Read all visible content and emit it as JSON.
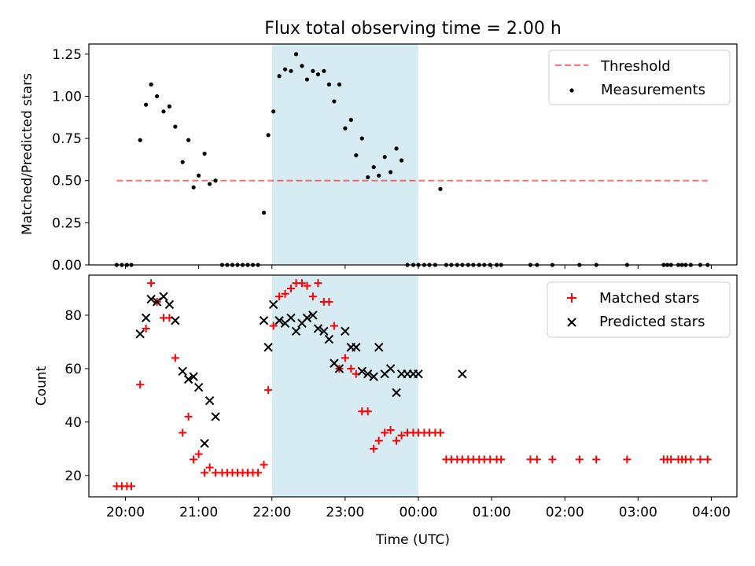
{
  "figure": {
    "title": "Flux total observing time = 2.00 h",
    "shaded_region_color": "#add8e6",
    "shaded_region": [
      "22:00",
      "00:00"
    ]
  },
  "chart_data": [
    {
      "type": "scatter",
      "ylabel": "Matched/Predicted stars",
      "xlabel": "",
      "x_unit": "hours since 20:00 UTC",
      "xlim": [
        -0.5,
        8.35
      ],
      "ylim": [
        0.0,
        1.31
      ],
      "yticks": [
        0.0,
        0.25,
        0.5,
        0.75,
        1.0,
        1.25
      ],
      "ytick_labels": [
        "0.00",
        "0.25",
        "0.50",
        "0.75",
        "1.00",
        "1.25"
      ],
      "grid": false,
      "legend_position": "top-right",
      "series": [
        {
          "name": "Threshold",
          "kind": "hline",
          "color": "#ff0000",
          "y": 0.5,
          "x_range": [
            -0.12,
            7.95
          ]
        },
        {
          "name": "Measurements",
          "kind": "points",
          "color": "#000000",
          "x": [
            -0.12,
            -0.05,
            0.02,
            0.08,
            0.2,
            0.28,
            0.35,
            0.43,
            0.52,
            0.6,
            0.68,
            0.78,
            0.86,
            0.93,
            1.0,
            1.08,
            1.15,
            1.23,
            1.32,
            1.39,
            1.46,
            1.53,
            1.6,
            1.67,
            1.74,
            1.81,
            1.89,
            1.95,
            2.02,
            2.1,
            2.18,
            2.26,
            2.33,
            2.41,
            2.48,
            2.56,
            2.63,
            2.71,
            2.78,
            2.85,
            2.92,
            3.0,
            3.08,
            3.15,
            3.23,
            3.31,
            3.39,
            3.46,
            3.54,
            3.62,
            3.7,
            3.77,
            3.85,
            3.93,
            4.0,
            4.08,
            4.15,
            4.23,
            4.3,
            4.38,
            4.45,
            4.53,
            4.6,
            4.68,
            4.75,
            4.83,
            4.9,
            4.98,
            5.07,
            5.13,
            5.53,
            5.62,
            5.83,
            6.2,
            6.43,
            6.85,
            7.35,
            7.4,
            7.45,
            7.55,
            7.6,
            7.65,
            7.72,
            7.85,
            7.95
          ],
          "y": [
            0.0,
            0.0,
            0.0,
            0.0,
            0.74,
            0.95,
            1.07,
            1.0,
            0.91,
            0.94,
            0.82,
            0.61,
            0.74,
            0.46,
            0.53,
            0.66,
            0.48,
            0.5,
            0.0,
            0.0,
            0.0,
            0.0,
            0.0,
            0.0,
            0.0,
            0.0,
            0.31,
            0.77,
            0.91,
            1.12,
            1.16,
            1.15,
            1.25,
            1.18,
            1.1,
            1.15,
            1.13,
            1.15,
            1.07,
            0.97,
            1.07,
            0.81,
            0.86,
            0.65,
            0.75,
            0.52,
            0.58,
            0.53,
            0.64,
            0.55,
            0.69,
            0.62,
            0.0,
            0.0,
            0.0,
            0.0,
            0.0,
            0.0,
            0.45,
            0.0,
            0.0,
            0.0,
            0.0,
            0.0,
            0.0,
            0.0,
            0.0,
            0.0,
            0.0,
            0.0,
            0.0,
            0.0,
            0.0,
            0.0,
            0.0,
            0.0,
            0.0,
            0.0,
            0.0,
            0.0,
            0.0,
            0.0,
            0.0,
            0.0,
            0.0
          ]
        }
      ]
    },
    {
      "type": "scatter",
      "ylabel": "Count",
      "xlabel": "Time (UTC)",
      "x_unit": "hours since 20:00 UTC",
      "xlim": [
        -0.5,
        8.35
      ],
      "ylim": [
        12,
        95
      ],
      "yticks": [
        20,
        40,
        60,
        80
      ],
      "ytick_labels": [
        "20",
        "40",
        "60",
        "80"
      ],
      "xticks": [
        0,
        1,
        2,
        3,
        4,
        5,
        6,
        7,
        8
      ],
      "xtick_labels": [
        "20:00",
        "21:00",
        "22:00",
        "23:00",
        "00:00",
        "01:00",
        "02:00",
        "03:00",
        "04:00"
      ],
      "grid": false,
      "legend_position": "top-right",
      "series": [
        {
          "name": "Matched stars",
          "kind": "plus",
          "color": "#ff0000",
          "x": [
            -0.12,
            -0.05,
            0.02,
            0.08,
            0.2,
            0.28,
            0.35,
            0.43,
            0.52,
            0.6,
            0.68,
            0.78,
            0.86,
            0.93,
            1.0,
            1.08,
            1.15,
            1.23,
            1.32,
            1.39,
            1.46,
            1.53,
            1.6,
            1.67,
            1.74,
            1.81,
            1.89,
            1.95,
            2.02,
            2.1,
            2.18,
            2.26,
            2.33,
            2.41,
            2.48,
            2.56,
            2.63,
            2.71,
            2.78,
            2.85,
            2.92,
            3.0,
            3.08,
            3.15,
            3.23,
            3.31,
            3.39,
            3.46,
            3.54,
            3.62,
            3.7,
            3.77,
            3.85,
            3.93,
            4.0,
            4.08,
            4.15,
            4.23,
            4.3,
            4.38,
            4.45,
            4.53,
            4.6,
            4.68,
            4.75,
            4.83,
            4.9,
            4.98,
            5.07,
            5.13,
            5.53,
            5.62,
            5.83,
            6.2,
            6.43,
            6.85,
            7.35,
            7.4,
            7.45,
            7.55,
            7.6,
            7.65,
            7.72,
            7.85,
            7.95
          ],
          "y": [
            16,
            16,
            16,
            16,
            54,
            75,
            92,
            85,
            79,
            79,
            64,
            36,
            42,
            26,
            28,
            21,
            23,
            21,
            21,
            21,
            21,
            21,
            21,
            21,
            21,
            21,
            24,
            52,
            76,
            87,
            88,
            90,
            92,
            92,
            91,
            87,
            92,
            85,
            85,
            76,
            60,
            64,
            60,
            58,
            44,
            44,
            30,
            33,
            36,
            37,
            33,
            35,
            36,
            36,
            36,
            36,
            36,
            36,
            36,
            26,
            26,
            26,
            26,
            26,
            26,
            26,
            26,
            26,
            26,
            26,
            26,
            26,
            26,
            26,
            26,
            26,
            26,
            26,
            26,
            26,
            26,
            26,
            26,
            26,
            26
          ]
        },
        {
          "name": "Predicted stars",
          "kind": "cross",
          "color": "#000000",
          "x": [
            0.2,
            0.28,
            0.35,
            0.43,
            0.52,
            0.6,
            0.68,
            0.78,
            0.86,
            0.93,
            1.0,
            1.08,
            1.15,
            1.23,
            1.89,
            1.95,
            2.02,
            2.1,
            2.18,
            2.26,
            2.33,
            2.41,
            2.48,
            2.56,
            2.63,
            2.71,
            2.78,
            2.85,
            2.92,
            3.0,
            3.08,
            3.15,
            3.23,
            3.31,
            3.39,
            3.46,
            3.54,
            3.62,
            3.7,
            3.77,
            3.85,
            3.93,
            4.0,
            4.6
          ],
          "y": [
            73,
            79,
            86,
            85,
            87,
            84,
            78,
            59,
            56,
            57,
            53,
            32,
            48,
            42,
            78,
            68,
            84,
            78,
            77,
            79,
            74,
            77,
            79,
            80,
            75,
            74,
            71,
            62,
            60,
            74,
            68,
            68,
            59,
            58,
            57,
            68,
            58,
            60,
            51,
            58,
            58,
            58,
            58,
            58
          ]
        }
      ]
    }
  ]
}
